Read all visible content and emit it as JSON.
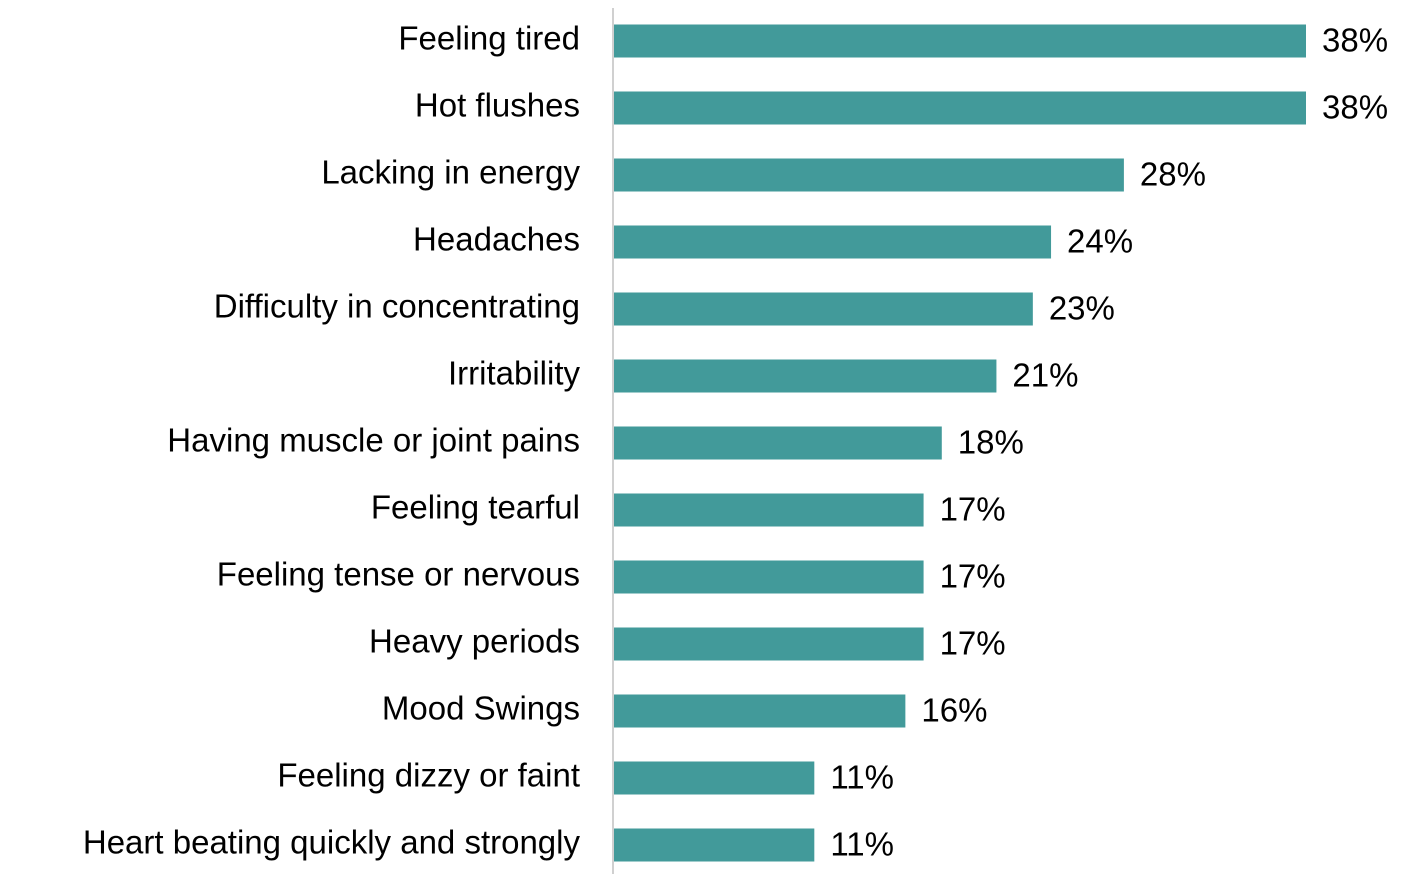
{
  "chart_data": {
    "type": "bar",
    "orientation": "horizontal",
    "categories": [
      "Feeling tired",
      "Hot flushes",
      "Lacking in energy",
      "Headaches",
      "Difficulty in concentrating",
      "Irritability",
      "Having muscle or joint pains",
      "Feeling tearful",
      "Feeling tense or nervous",
      "Heavy periods",
      "Mood Swings",
      "Feeling dizzy or faint",
      "Heart beating quickly and strongly"
    ],
    "values": [
      38,
      38,
      28,
      24,
      23,
      21,
      18,
      17,
      17,
      17,
      16,
      11,
      11
    ],
    "value_labels": [
      "38%",
      "38%",
      "28%",
      "24%",
      "23%",
      "21%",
      "18%",
      "17%",
      "17%",
      "17%",
      "16%",
      "11%",
      "11%"
    ],
    "color": "#429a9a"
  }
}
